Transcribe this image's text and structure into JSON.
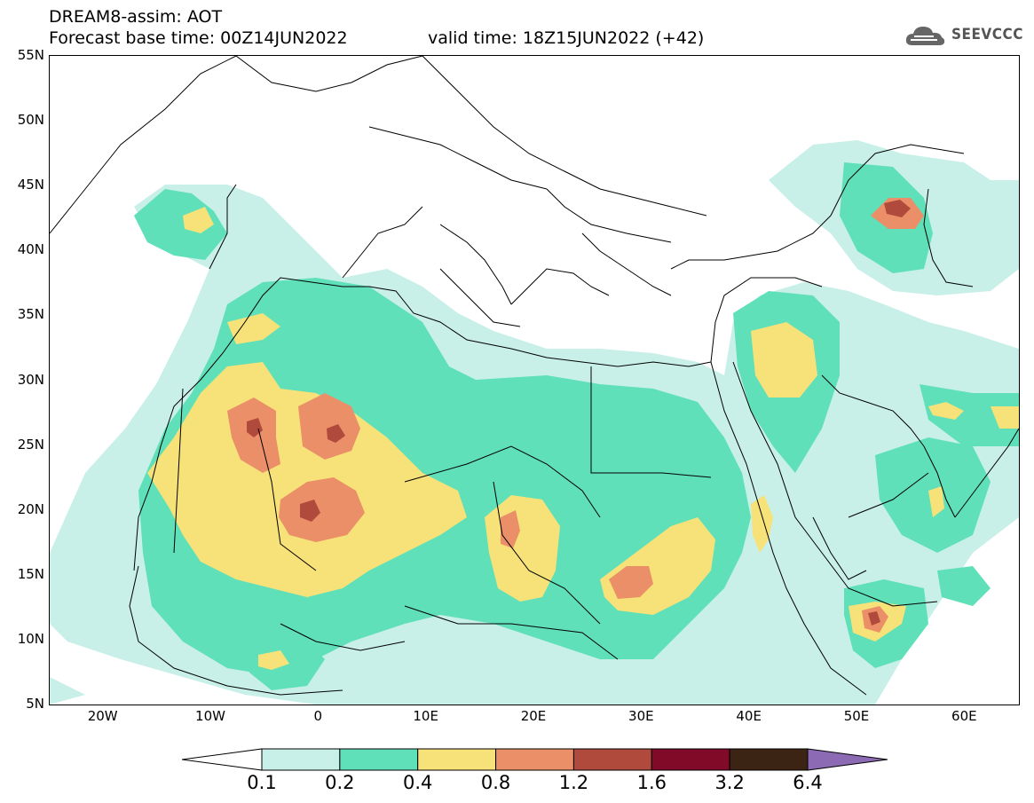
{
  "header": {
    "title": "DREAM8-assim: AOT",
    "base_time": "Forecast base time: 00Z14JUN2022",
    "valid_time": "valid time: 18Z15JUN2022 (+42)"
  },
  "logo": {
    "text": "SEEVCCC",
    "icon": "cloud-icon"
  },
  "axes": {
    "y_labels": [
      "55N",
      "50N",
      "45N",
      "40N",
      "35N",
      "30N",
      "25N",
      "20N",
      "15N",
      "10N",
      "5N"
    ],
    "x_labels": [
      "20W",
      "10W",
      "0",
      "10E",
      "20E",
      "30E",
      "40E",
      "50E",
      "60E"
    ],
    "lon_range": [
      -25,
      65
    ],
    "lat_range": [
      5,
      55
    ]
  },
  "legend": {
    "labels": [
      "0.1",
      "0.2",
      "0.4",
      "0.8",
      "1.2",
      "1.6",
      "3.2",
      "6.4"
    ],
    "colors": [
      "#ffffff",
      "#c8f0e8",
      "#5fe0b8",
      "#f7e27a",
      "#ea8f68",
      "#b04a3c",
      "#800a28",
      "#3b2414",
      "#8c6ab4"
    ]
  },
  "aot_colors": {
    "c1": "#c8f0e8",
    "c2": "#5fe0b8",
    "c3": "#f7e27a",
    "c4": "#ea8f68",
    "c5": "#b04a3c"
  }
}
